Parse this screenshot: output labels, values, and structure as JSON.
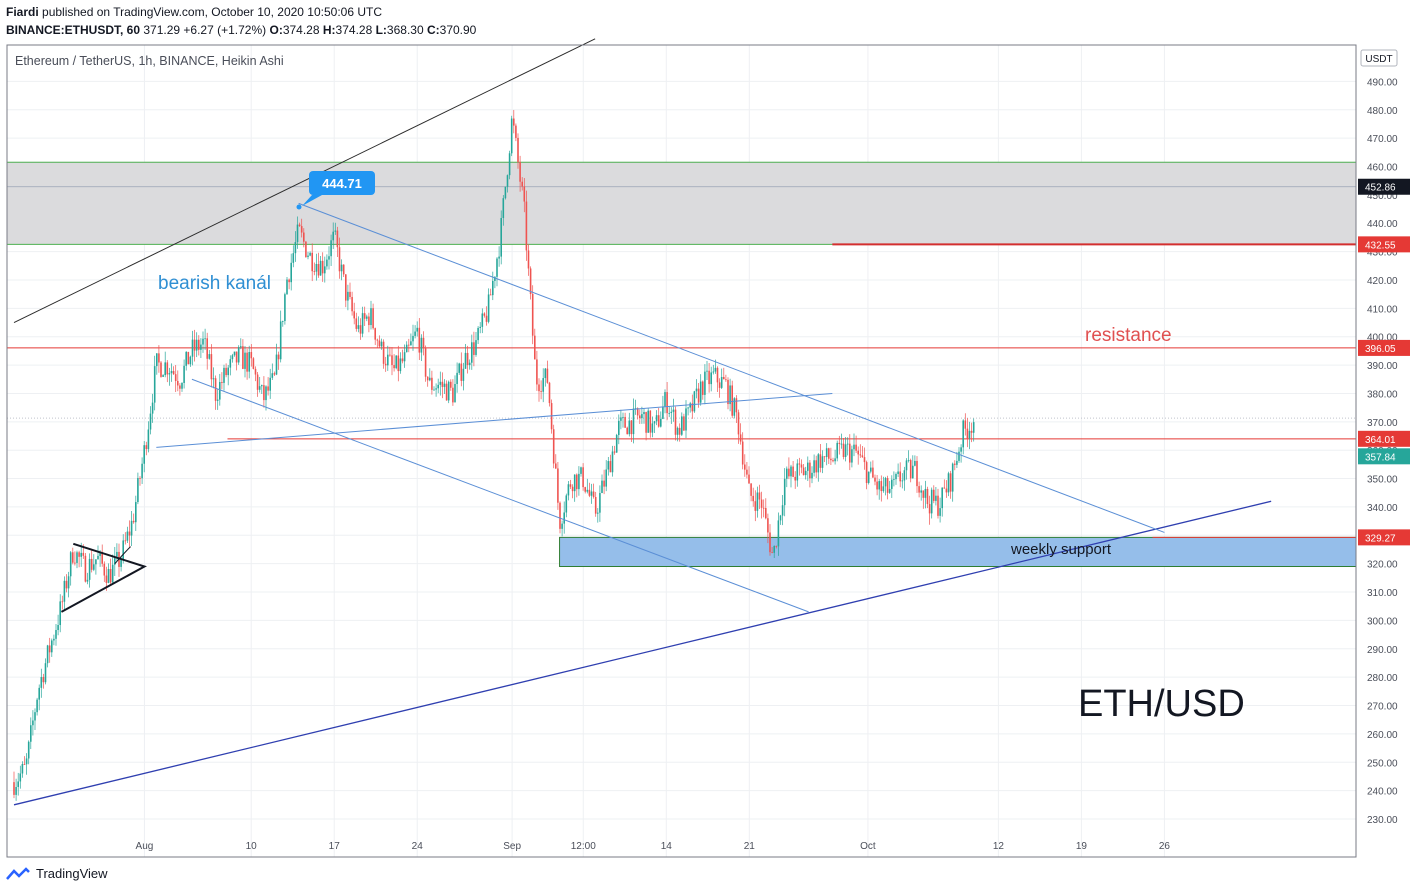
{
  "header": {
    "author": "Fiardi",
    "published": "published on TradingView.com, October 10, 2020 10:50:06 UTC",
    "symbol": "BINANCE:ETHUSDT, 60",
    "last": "371.29",
    "change": "+6.27 (+1.72%)",
    "o_label": "O:",
    "o": "374.28",
    "h_label": "H:",
    "h": "374.28",
    "l_label": "L:",
    "l": "368.30",
    "c_label": "C:",
    "c": "370.90"
  },
  "chart_data": {
    "type": "candlestick",
    "title": "Ethereum / TetherUS, 1h, BINANCE, Heikin Ashi",
    "currency_label": "USDT",
    "ylim": [
      225,
      500
    ],
    "yticks": [
      230,
      240,
      250,
      260,
      270,
      280,
      290,
      300,
      310,
      320,
      330,
      340,
      350,
      360,
      370,
      380,
      390,
      400,
      410,
      420,
      430,
      440,
      450,
      460,
      470,
      480,
      490
    ],
    "xtick_labels": [
      "Aug",
      "10",
      "17",
      "24",
      "Sep",
      "12:00",
      "14",
      "21",
      "Oct",
      "12",
      "19",
      "26"
    ],
    "grid": true,
    "up_color": "#26a69a",
    "down_color": "#ef5350",
    "path": [
      [
        "2020-07-21",
        243
      ],
      [
        "2020-07-22",
        248
      ],
      [
        "2020-07-23",
        275
      ],
      [
        "2020-07-24",
        290
      ],
      [
        "2020-07-25",
        305
      ],
      [
        "2020-07-26",
        325
      ],
      [
        "2020-07-27",
        318
      ],
      [
        "2020-07-28",
        322
      ],
      [
        "2020-07-29",
        316
      ],
      [
        "2020-07-30",
        322
      ],
      [
        "2020-07-31",
        335
      ],
      [
        "2020-08-01",
        360
      ],
      [
        "2020-08-02",
        390
      ],
      [
        "2020-08-03",
        390
      ],
      [
        "2020-08-04",
        385
      ],
      [
        "2020-08-05",
        395
      ],
      [
        "2020-08-06",
        398
      ],
      [
        "2020-08-07",
        380
      ],
      [
        "2020-08-08",
        388
      ],
      [
        "2020-08-09",
        393
      ],
      [
        "2020-08-10",
        390
      ],
      [
        "2020-08-11",
        378
      ],
      [
        "2020-08-12",
        385
      ],
      [
        "2020-08-13",
        420
      ],
      [
        "2020-08-14",
        437
      ],
      [
        "2020-08-15",
        428
      ],
      [
        "2020-08-16",
        425
      ],
      [
        "2020-08-17",
        435
      ],
      [
        "2020-08-18",
        415
      ],
      [
        "2020-08-19",
        402
      ],
      [
        "2020-08-20",
        408
      ],
      [
        "2020-08-21",
        395
      ],
      [
        "2020-08-22",
        388
      ],
      [
        "2020-08-23",
        392
      ],
      [
        "2020-08-24",
        402
      ],
      [
        "2020-08-25",
        383
      ],
      [
        "2020-08-26",
        383
      ],
      [
        "2020-08-27",
        380
      ],
      [
        "2020-08-28",
        392
      ],
      [
        "2020-08-29",
        398
      ],
      [
        "2020-08-30",
        410
      ],
      [
        "2020-08-31",
        435
      ],
      [
        "2020-09-01",
        477
      ],
      [
        "2020-09-02",
        445
      ],
      [
        "2020-09-03",
        385
      ],
      [
        "2020-09-04",
        385
      ],
      [
        "2020-09-05",
        335
      ],
      [
        "2020-09-06",
        350
      ],
      [
        "2020-09-07",
        350
      ],
      [
        "2020-09-08",
        338
      ],
      [
        "2020-09-09",
        352
      ],
      [
        "2020-09-10",
        368
      ],
      [
        "2020-09-11",
        370
      ],
      [
        "2020-09-12",
        372
      ],
      [
        "2020-09-13",
        367
      ],
      [
        "2020-09-14",
        378
      ],
      [
        "2020-09-15",
        367
      ],
      [
        "2020-09-16",
        373
      ],
      [
        "2020-09-17",
        383
      ],
      [
        "2020-09-18",
        386
      ],
      [
        "2020-09-19",
        383
      ],
      [
        "2020-09-20",
        371
      ],
      [
        "2020-09-21",
        344
      ],
      [
        "2020-09-22",
        342
      ],
      [
        "2020-09-23",
        322
      ],
      [
        "2020-09-24",
        350
      ],
      [
        "2020-09-25",
        352
      ],
      [
        "2020-09-26",
        353
      ],
      [
        "2020-09-27",
        357
      ],
      [
        "2020-09-28",
        357
      ],
      [
        "2020-09-29",
        360
      ],
      [
        "2020-09-30",
        359
      ],
      [
        "2020-10-01",
        352
      ],
      [
        "2020-10-02",
        346
      ],
      [
        "2020-10-03",
        346
      ],
      [
        "2020-10-04",
        352
      ],
      [
        "2020-10-05",
        353
      ],
      [
        "2020-10-06",
        342
      ],
      [
        "2020-10-07",
        341
      ],
      [
        "2020-10-08",
        350
      ],
      [
        "2020-10-09",
        366
      ],
      [
        "2020-10-10",
        371
      ]
    ],
    "price_labels": [
      {
        "text": "452.86",
        "value": 452.86,
        "bg": "#131722",
        "fg": "#ffffff"
      },
      {
        "text": "432.55",
        "value": 432.55,
        "bg": "#e53935",
        "fg": "#ffffff"
      },
      {
        "text": "396.05",
        "value": 396.05,
        "bg": "#e53935",
        "fg": "#ffffff"
      },
      {
        "text": "364.01",
        "value": 364.01,
        "bg": "#e53935",
        "fg": "#ffffff"
      },
      {
        "text": "357.84",
        "value": 357.84,
        "bg": "#26a69a",
        "fg": "#ffffff"
      },
      {
        "text": "329.27",
        "value": 329.27,
        "bg": "#e53935",
        "fg": "#ffffff"
      }
    ],
    "zones": [
      {
        "name": "gray-zone",
        "from": 432.55,
        "to": 461.5,
        "fill": "#d9d9db",
        "stroke": "#4caf50"
      },
      {
        "name": "weekly-support",
        "from": 319,
        "to": 329.27,
        "fill": "#8fbbe9",
        "stroke": "#2e7d32"
      }
    ],
    "annotations": {
      "callout": "444.71",
      "channel": "bearish kanál",
      "resistance": "resistance",
      "support": "weekly support",
      "pair": "ETH/USD"
    }
  },
  "footer": {
    "brand": "TradingView"
  }
}
